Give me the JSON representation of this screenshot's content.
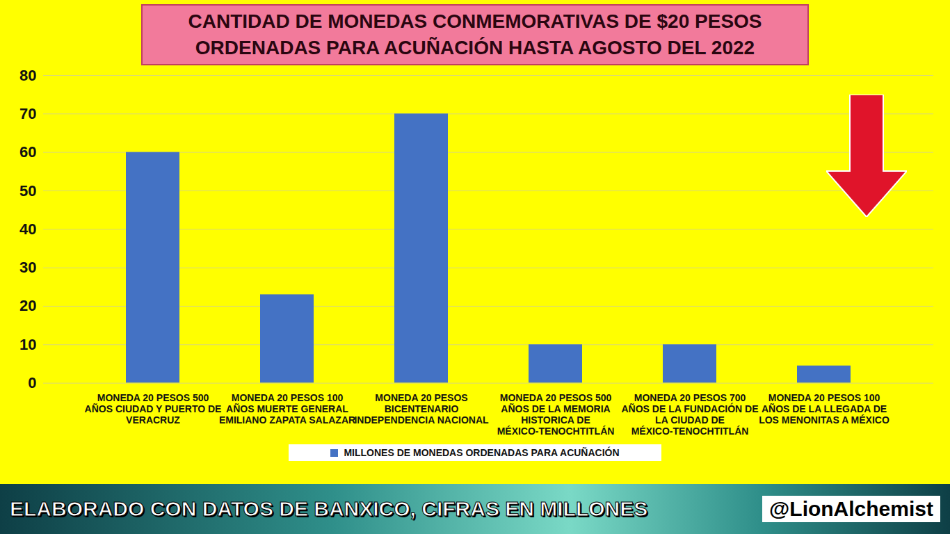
{
  "chart_data": {
    "type": "bar",
    "title": "CANTIDAD DE MONEDAS CONMEMORATIVAS DE $20 PESOS ORDENADAS PARA ACUÑACIÓN HASTA AGOSTO DEL 2022",
    "categories": [
      "MONEDA 20 PESOS 500 AÑOS CIUDAD Y PUERTO DE VERACRUZ",
      "MONEDA 20 PESOS 100 AÑOS MUERTE GENERAL EMILIANO ZAPATA SALAZAR",
      "MONEDA 20 PESOS BICENTENARIO INDEPENDENCIA NACIONAL",
      "MONEDA 20 PESOS 500 AÑOS DE LA MEMORIA HISTORICA DE MÉXICO-TENOCHTITLÁN",
      "MONEDA 20 PESOS 700 AÑOS DE LA FUNDACIÓN DE LA CIUDAD DE MÉXICO-TENOCHTITLÁN",
      "MONEDA 20 PESOS 100 AÑOS DE LA LLEGADA DE LOS MENONITAS A MÉXICO"
    ],
    "series": [
      {
        "name": "MILLONES DE MONEDAS ORDENADAS PARA ACUÑACIÓN",
        "color": "#4472c4",
        "values": [
          60,
          23,
          70,
          10,
          10,
          4.5
        ]
      }
    ],
    "ylim": [
      0,
      80
    ],
    "yticks": [
      0,
      10,
      20,
      30,
      40,
      50,
      60,
      70,
      80
    ],
    "grid": true,
    "legend": "bottom",
    "caption": "ELABORADO CON DATOS DE BANXICO, CIFRAS EN MILLONES",
    "credit": "@LionAlchemist"
  }
}
